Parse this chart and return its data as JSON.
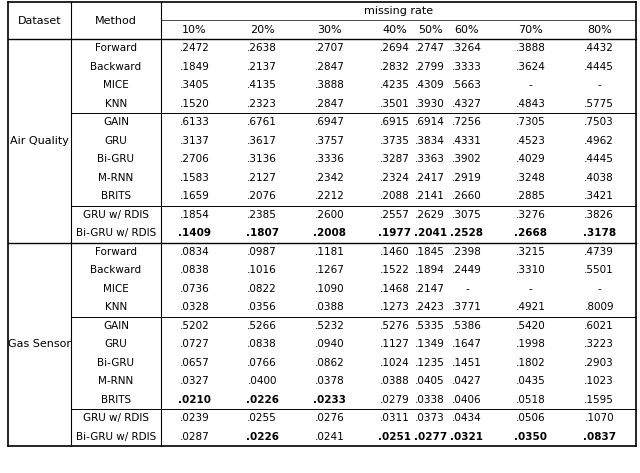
{
  "col_headers": [
    "10%",
    "20%",
    "30%",
    "40%",
    "50%",
    "60%",
    "70%",
    "80%"
  ],
  "sections": [
    {
      "dataset": "Air Quality",
      "groups": [
        {
          "methods": [
            "Forward",
            "Backward",
            "MICE",
            "KNN"
          ],
          "values": [
            [
              ".2472",
              ".2638",
              ".2707",
              ".2694",
              ".2747",
              ".3264",
              ".3888",
              ".4432"
            ],
            [
              ".1849",
              ".2137",
              ".2847",
              ".2832",
              ".2799",
              ".3333",
              ".3624",
              ".4445"
            ],
            [
              ".3405",
              ".4135",
              ".3888",
              ".4235",
              ".4309",
              ".5663",
              "-",
              "-"
            ],
            [
              ".1520",
              ".2323",
              ".2847",
              ".3501",
              ".3930",
              ".4327",
              ".4843",
              ".5775"
            ]
          ],
          "bold": [
            [
              false,
              false,
              false,
              false,
              false,
              false,
              false,
              false
            ],
            [
              false,
              false,
              false,
              false,
              false,
              false,
              false,
              false
            ],
            [
              false,
              false,
              false,
              false,
              false,
              false,
              false,
              false
            ],
            [
              false,
              false,
              false,
              false,
              false,
              false,
              false,
              false
            ]
          ]
        },
        {
          "methods": [
            "GAIN",
            "GRU",
            "Bi-GRU",
            "M-RNN",
            "BRITS"
          ],
          "values": [
            [
              ".6133",
              ".6761",
              ".6947",
              ".6915",
              ".6914",
              ".7256",
              ".7305",
              ".7503"
            ],
            [
              ".3137",
              ".3617",
              ".3757",
              ".3735",
              ".3834",
              ".4331",
              ".4523",
              ".4962"
            ],
            [
              ".2706",
              ".3136",
              ".3336",
              ".3287",
              ".3363",
              ".3902",
              ".4029",
              ".4445"
            ],
            [
              ".1583",
              ".2127",
              ".2342",
              ".2324",
              ".2417",
              ".2919",
              ".3248",
              ".4038"
            ],
            [
              ".1659",
              ".2076",
              ".2212",
              ".2088",
              ".2141",
              ".2660",
              ".2885",
              ".3421"
            ]
          ],
          "bold": [
            [
              false,
              false,
              false,
              false,
              false,
              false,
              false,
              false
            ],
            [
              false,
              false,
              false,
              false,
              false,
              false,
              false,
              false
            ],
            [
              false,
              false,
              false,
              false,
              false,
              false,
              false,
              false
            ],
            [
              false,
              false,
              false,
              false,
              false,
              false,
              false,
              false
            ],
            [
              false,
              false,
              false,
              false,
              false,
              false,
              false,
              false
            ]
          ]
        },
        {
          "methods": [
            "GRU w/ RDIS",
            "Bi-GRU w/ RDIS"
          ],
          "values": [
            [
              ".1854",
              ".2385",
              ".2600",
              ".2557",
              ".2629",
              ".3075",
              ".3276",
              ".3826"
            ],
            [
              ".1409",
              ".1807",
              ".2008",
              ".1977",
              ".2041",
              ".2528",
              ".2668",
              ".3178"
            ]
          ],
          "bold": [
            [
              false,
              false,
              false,
              false,
              false,
              false,
              false,
              false
            ],
            [
              true,
              true,
              true,
              true,
              true,
              true,
              true,
              true
            ]
          ]
        }
      ]
    },
    {
      "dataset": "Gas Sensor",
      "groups": [
        {
          "methods": [
            "Forward",
            "Backward",
            "MICE",
            "KNN"
          ],
          "values": [
            [
              ".0834",
              ".0987",
              ".1181",
              ".1460",
              ".1845",
              ".2398",
              ".3215",
              ".4739"
            ],
            [
              ".0838",
              ".1016",
              ".1267",
              ".1522",
              ".1894",
              ".2449",
              ".3310",
              ".5501"
            ],
            [
              ".0736",
              ".0822",
              ".1090",
              ".1468",
              ".2147",
              "-",
              "-",
              "-"
            ],
            [
              ".0328",
              ".0356",
              ".0388",
              ".1273",
              ".2423",
              ".3771",
              ".4921",
              ".8009"
            ]
          ],
          "bold": [
            [
              false,
              false,
              false,
              false,
              false,
              false,
              false,
              false
            ],
            [
              false,
              false,
              false,
              false,
              false,
              false,
              false,
              false
            ],
            [
              false,
              false,
              false,
              false,
              false,
              false,
              false,
              false
            ],
            [
              false,
              false,
              false,
              false,
              false,
              false,
              false,
              false
            ]
          ]
        },
        {
          "methods": [
            "GAIN",
            "GRU",
            "Bi-GRU",
            "M-RNN",
            "BRITS"
          ],
          "values": [
            [
              ".5202",
              ".5266",
              ".5232",
              ".5276",
              ".5335",
              ".5386",
              ".5420",
              ".6021"
            ],
            [
              ".0727",
              ".0838",
              ".0940",
              ".1127",
              ".1349",
              ".1647",
              ".1998",
              ".3223"
            ],
            [
              ".0657",
              ".0766",
              ".0862",
              ".1024",
              ".1235",
              ".1451",
              ".1802",
              ".2903"
            ],
            [
              ".0327",
              ".0400",
              ".0378",
              ".0388",
              ".0405",
              ".0427",
              ".0435",
              ".1023"
            ],
            [
              ".0210",
              ".0226",
              ".0233",
              ".0279",
              ".0338",
              ".0406",
              ".0518",
              ".1595"
            ]
          ],
          "bold": [
            [
              false,
              false,
              false,
              false,
              false,
              false,
              false,
              false
            ],
            [
              false,
              false,
              false,
              false,
              false,
              false,
              false,
              false
            ],
            [
              false,
              false,
              false,
              false,
              false,
              false,
              false,
              false
            ],
            [
              false,
              false,
              false,
              false,
              false,
              false,
              false,
              false
            ],
            [
              true,
              true,
              true,
              false,
              false,
              false,
              false,
              false
            ]
          ]
        },
        {
          "methods": [
            "GRU w/ RDIS",
            "Bi-GRU w/ RDIS"
          ],
          "values": [
            [
              ".0239",
              ".0255",
              ".0276",
              ".0311",
              ".0373",
              ".0434",
              ".0506",
              ".1070"
            ],
            [
              ".0287",
              ".0226",
              ".0241",
              ".0251",
              ".0277",
              ".0321",
              ".0350",
              ".0837"
            ]
          ],
          "bold": [
            [
              false,
              false,
              false,
              false,
              false,
              false,
              false,
              false
            ],
            [
              false,
              true,
              false,
              true,
              true,
              true,
              true,
              true
            ]
          ]
        }
      ]
    }
  ],
  "bg_color": "#ffffff",
  "font_size": 7.5,
  "header_font_size": 8.0
}
